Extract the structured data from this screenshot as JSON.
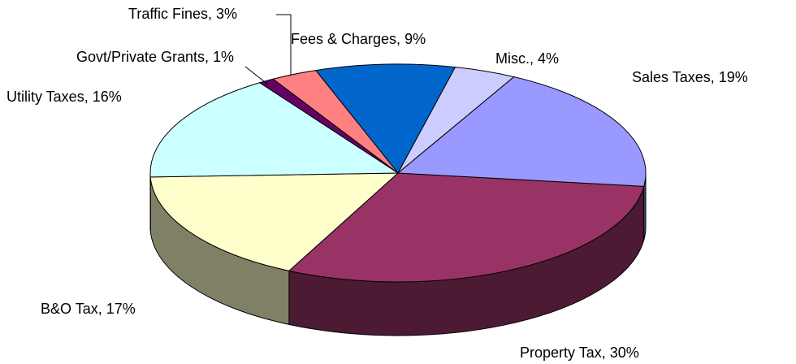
{
  "chart_data": {
    "type": "pie",
    "categories": [
      "Property Tax",
      "B&O Tax",
      "Utility Taxes",
      "Govt/Private Grants",
      "Traffic Fines",
      "Fees & Charges",
      "Misc.",
      "Sales Taxes"
    ],
    "values": [
      30,
      17,
      16,
      1,
      3,
      9,
      4,
      19
    ],
    "value_labels": [
      "Property Tax, 30%",
      "B&O Tax, 17%",
      "Utility Taxes, 16%",
      "Govt/Private Grants, 1%",
      "Traffic Fines, 3%",
      "Fees & Charges, 9%",
      "Misc., 4%",
      "Sales Taxes, 19%"
    ],
    "colors": [
      "#993366",
      "#ffffcc",
      "#ccffff",
      "#660066",
      "#ff8080",
      "#0066cc",
      "#ccccff",
      "#9999ff"
    ]
  }
}
